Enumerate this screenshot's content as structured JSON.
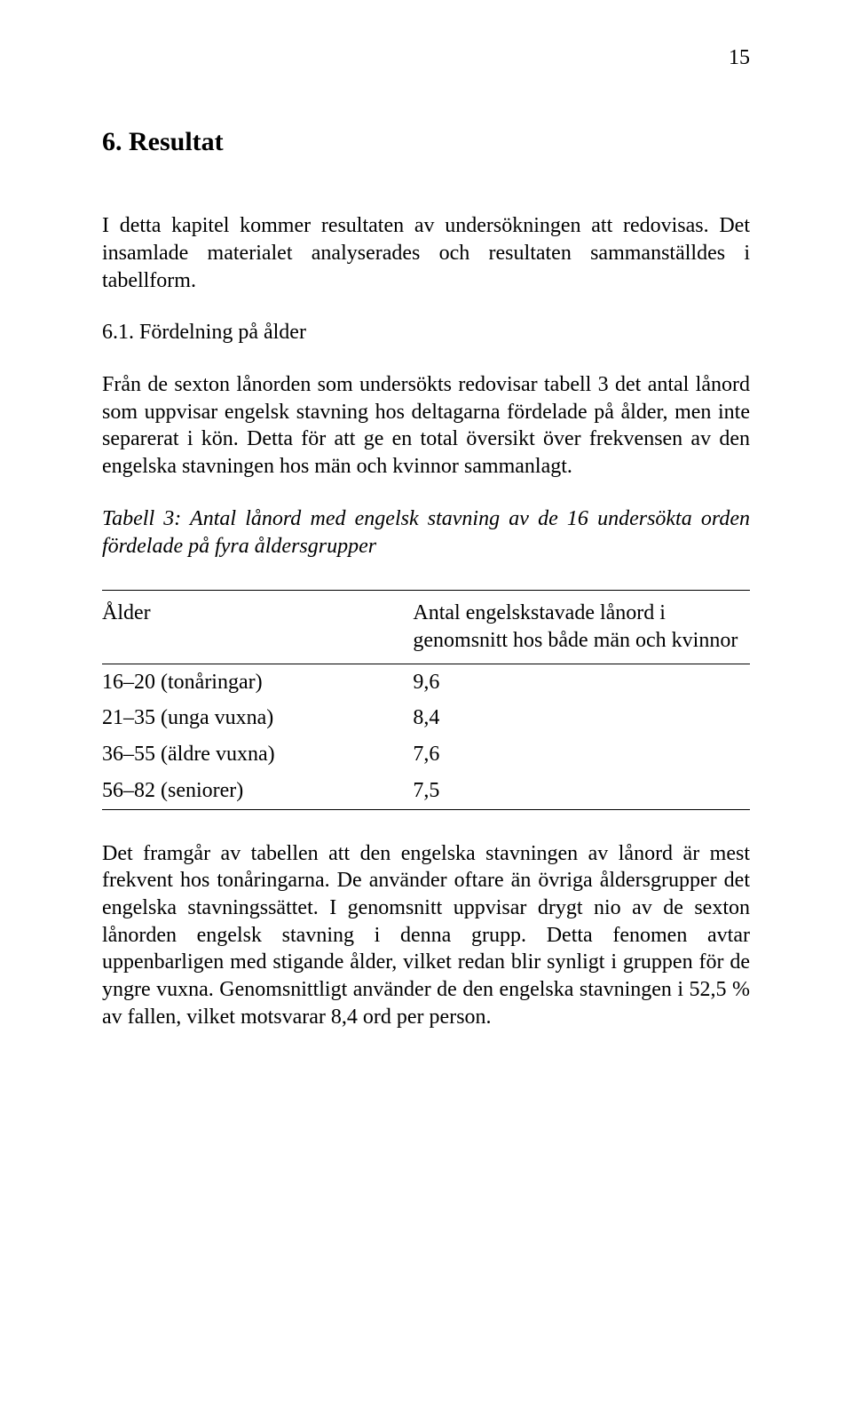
{
  "page_number": "15",
  "heading": "6. Resultat",
  "intro_paragraph": "I detta kapitel kommer resultaten av undersökningen att redovisas. Det insamlade materialet analyserades och resultaten sammanställdes i tabellform.",
  "subheading": "6.1. Fördelning på ålder",
  "body_paragraph": "Från de sexton lånorden som undersökts redovisar tabell 3 det antal lånord som uppvisar engelsk stavning hos deltagarna fördelade på ålder, men inte separerat i kön. Detta för att ge en total översikt över frekvensen av den engelska stavningen hos män och kvinnor sammanlagt.",
  "table_caption": "Tabell 3: Antal lånord med engelsk stavning av de 16 undersökta orden fördelade på fyra åldersgrupper",
  "table": {
    "columns": [
      "Ålder",
      "Antal engelskstavade lånord i genomsnitt hos både män och kvinnor"
    ],
    "rows": [
      [
        "16–20 (tonåringar)",
        "9,6"
      ],
      [
        "21–35 (unga vuxna)",
        "8,4"
      ],
      [
        "36–55 (äldre vuxna)",
        "7,6"
      ],
      [
        "56–82 (seniorer)",
        "7,5"
      ]
    ]
  },
  "closing_paragraph": "Det framgår av tabellen att den engelska stavningen av lånord är mest frekvent hos tonåringarna. De använder oftare än övriga åldersgrupper det engelska stavningssättet. I genomsnitt uppvisar drygt nio av de sexton lånorden engelsk stavning i denna grupp. Detta fenomen avtar uppenbarligen med stigande ålder, vilket redan blir synligt i gruppen för de yngre vuxna. Genomsnittligt använder de den engelska stavningen i 52,5 % av fallen, vilket motsvarar 8,4 ord per person."
}
